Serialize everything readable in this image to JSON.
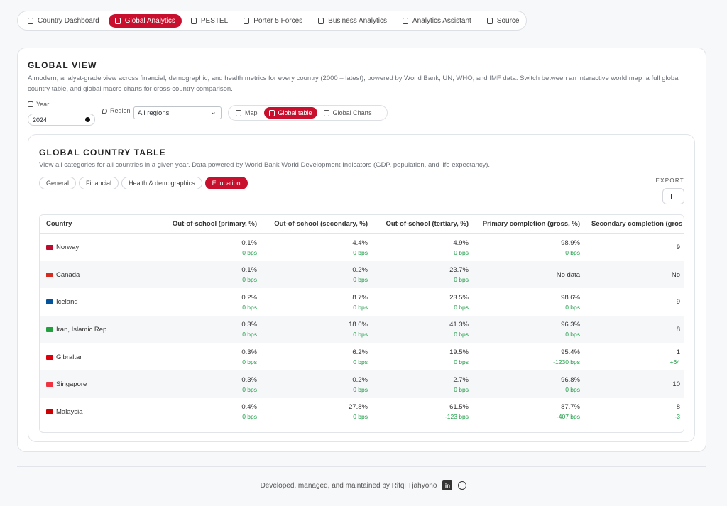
{
  "nav": {
    "items": [
      "Country Dashboard",
      "Global Analytics",
      "PESTEL",
      "Porter 5 Forces",
      "Business Analytics",
      "Analytics Assistant",
      "Source"
    ]
  },
  "view": {
    "title": "GLOBAL VIEW",
    "description": "A modern, analyst-grade view across financial, demographic, and health metrics for every country (2000 – latest), powered by World Bank, UN, WHO, and IMF data. Switch between an interactive world map, a full global country table, and global macro charts for cross-country comparison.",
    "year_label": "Year",
    "year": "2024",
    "region_label": "Region",
    "region": "All regions",
    "modes": [
      "Map",
      "Global table",
      "Global Charts"
    ]
  },
  "table_card": {
    "title": "GLOBAL COUNTRY TABLE",
    "description": "View all categories for all countries in a given year. Data powered by World Bank World Development Indicators (GDP, population, and life expectancy).",
    "categories": [
      "General",
      "Financial",
      "Health & demographics",
      "Education"
    ],
    "export_label": "EXPORT"
  },
  "table": {
    "columns": [
      "Country",
      "Out-of-school (primary, %)",
      "Out-of-school (secondary, %)",
      "Out-of-school (tertiary, %)",
      "Primary completion (gross, %)",
      "Secondary completion (gros"
    ],
    "rows": [
      {
        "country": "Norway",
        "cells": [
          {
            "value": "0.1%",
            "change": "0 bps"
          },
          {
            "value": "4.4%",
            "change": "0 bps"
          },
          {
            "value": "4.9%",
            "change": "0 bps"
          },
          {
            "value": "98.9%",
            "change": "0 bps"
          },
          {
            "value": "9"
          }
        ]
      },
      {
        "country": "Canada",
        "cells": [
          {
            "value": "0.1%",
            "change": "0 bps"
          },
          {
            "value": "0.2%",
            "change": "0 bps"
          },
          {
            "value": "23.7%",
            "change": "0 bps"
          },
          {
            "value": "No data"
          },
          {
            "value": "No"
          }
        ]
      },
      {
        "country": "Iceland",
        "cells": [
          {
            "value": "0.2%",
            "change": "0 bps"
          },
          {
            "value": "8.7%",
            "change": "0 bps"
          },
          {
            "value": "23.5%",
            "change": "0 bps"
          },
          {
            "value": "98.6%",
            "change": "0 bps"
          },
          {
            "value": "9"
          }
        ]
      },
      {
        "country": "Iran, Islamic Rep.",
        "cells": [
          {
            "value": "0.3%",
            "change": "0 bps"
          },
          {
            "value": "18.6%",
            "change": "0 bps"
          },
          {
            "value": "41.3%",
            "change": "0 bps"
          },
          {
            "value": "96.3%",
            "change": "0 bps"
          },
          {
            "value": "8"
          }
        ]
      },
      {
        "country": "Gibraltar",
        "cells": [
          {
            "value": "0.3%",
            "change": "0 bps"
          },
          {
            "value": "6.2%",
            "change": "0 bps"
          },
          {
            "value": "19.5%",
            "change": "0 bps"
          },
          {
            "value": "95.4%",
            "change": "-1230 bps"
          },
          {
            "value": "1",
            "change": "+64"
          }
        ]
      },
      {
        "country": "Singapore",
        "cells": [
          {
            "value": "0.3%",
            "change": "0 bps"
          },
          {
            "value": "0.2%",
            "change": "0 bps"
          },
          {
            "value": "2.7%",
            "change": "0 bps"
          },
          {
            "value": "96.8%",
            "change": "0 bps"
          },
          {
            "value": "10"
          }
        ]
      },
      {
        "country": "Malaysia",
        "cells": [
          {
            "value": "0.4%",
            "change": "0 bps"
          },
          {
            "value": "27.8%",
            "change": "0 bps"
          },
          {
            "value": "61.5%",
            "change": "-123 bps"
          },
          {
            "value": "87.7%",
            "change": "-407 bps"
          },
          {
            "value": "8",
            "change": "-3"
          }
        ]
      }
    ]
  },
  "footer": {
    "text": "Developed, managed, and maintained by Rifqi Tjahyono"
  }
}
